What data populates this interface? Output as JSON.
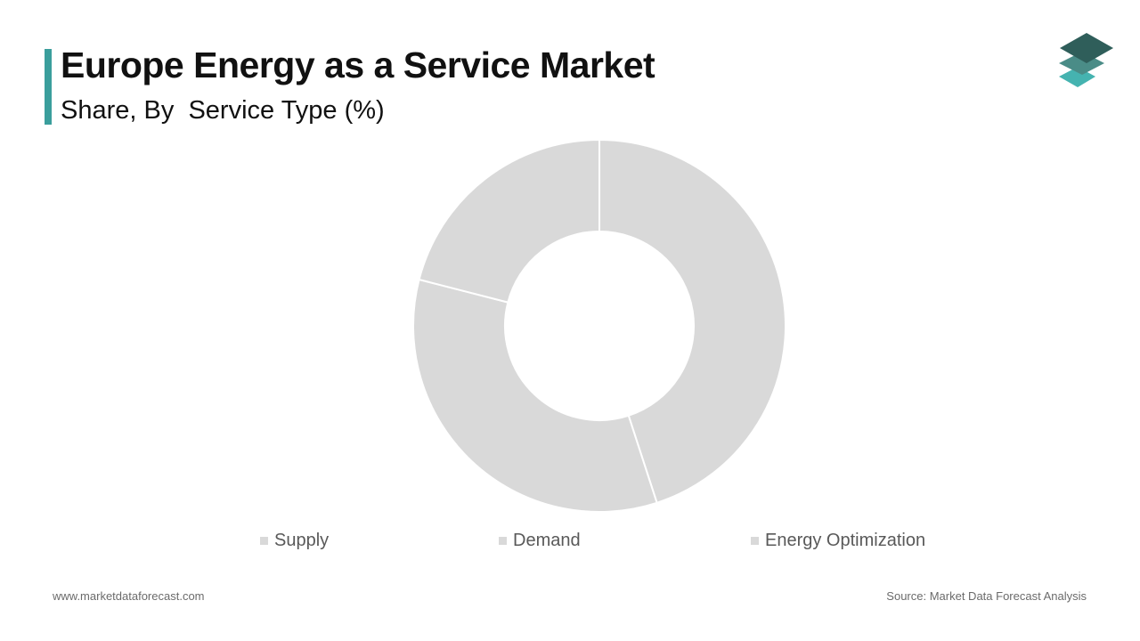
{
  "header": {
    "title": "Europe Energy as a Service Market",
    "subtitle": "Share, By  Service Type (%)"
  },
  "colors": {
    "accent": "#3a9e9c",
    "slice_fill": "#d9d9d9",
    "slice_separator": "#ffffff",
    "logo_top": "#2f5e5a",
    "logo_middle": "#4a8c87",
    "logo_bottom": "#45b3b0"
  },
  "logo": {
    "icon": "stacked-layers-icon"
  },
  "chart_data": {
    "type": "pie",
    "style": "donut",
    "series": [
      {
        "name": "Supply",
        "value": 45
      },
      {
        "name": "Demand",
        "value": 34
      },
      {
        "name": "Energy Optimization",
        "value": 21
      }
    ],
    "legend": {
      "placement": "bottom",
      "entries": [
        "Supply",
        "Demand",
        "Energy Optimization"
      ]
    }
  },
  "footer": {
    "website": "www.marketdataforecast.com",
    "source": "Source: Market Data Forecast Analysis"
  }
}
